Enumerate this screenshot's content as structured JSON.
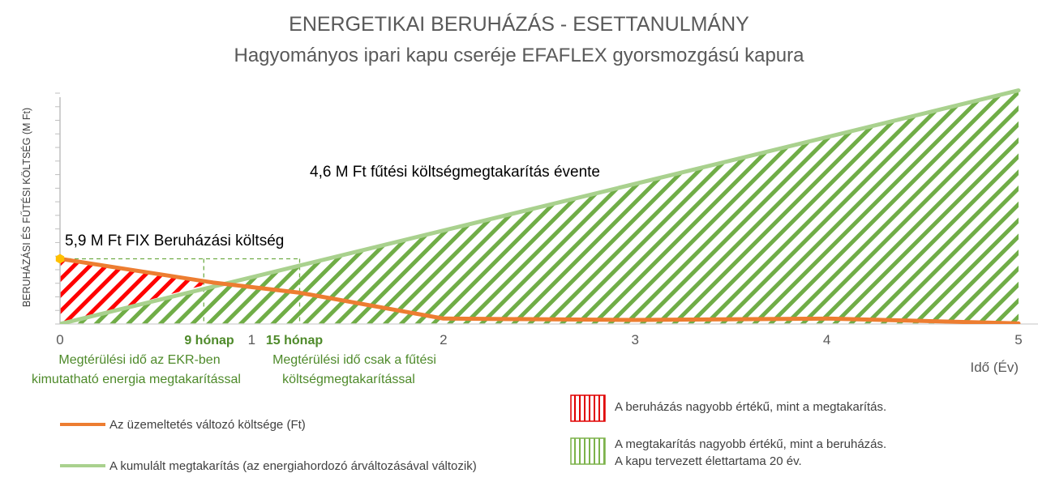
{
  "chart_data": {
    "type": "line",
    "title": "ENERGETIKAI BERUHÁZÁS - ESETTANULMÁNY",
    "subtitle": "Hagyományos ipari kapu cseréje EFAFLEX gyorsmozgású kapura",
    "xlabel": "Idő (Év)",
    "ylabel": "BERUHÁZÁSI ÉS FŰTÉSI KÖLTSÉG (M Ft)",
    "xlim": [
      0,
      5
    ],
    "ylim": [
      0,
      17
    ],
    "x_ticks": [
      "0",
      "1",
      "2",
      "3",
      "4",
      "5"
    ],
    "grid": false,
    "series": [
      {
        "name": "Az üzemeltetés változó költsége (Ft)",
        "color": "#ed7d31",
        "x": [
          0,
          0.8,
          1.25,
          2,
          3,
          4,
          5
        ],
        "y": [
          4.8,
          3.05,
          2.3,
          0.4,
          0.3,
          0.4,
          0.05
        ]
      },
      {
        "name": "A kumulált megtakarítás (az energiahordozó árváltozásával változik)",
        "color": "#a9d18e",
        "x": [
          0,
          5
        ],
        "y": [
          0,
          17.2
        ]
      }
    ],
    "regions": [
      {
        "label": "A beruházás nagyobb értékű, mint a megtakarítás.",
        "color": "#ff0000",
        "x_range": [
          0,
          0.8
        ]
      },
      {
        "label": "A megtakarítás nagyobb értékű, mint a beruházás.",
        "label2": "A kapu tervezett élettartama 20 év.",
        "color": "#70ad47",
        "x_range": [
          0.8,
          5
        ]
      }
    ],
    "annotations": [
      {
        "text": "5,9 M Ft FIX Beruházási költség",
        "x": 0,
        "y": 4.8
      },
      {
        "text": "4,6 M Ft fűtési költségmegtakarítás évente",
        "x": 2.3,
        "y": 11.5
      }
    ],
    "markers": [
      {
        "label": "9 hónap",
        "note": [
          "Megtérülési idő az EKR-ben",
          "kimutatható energia megtakarítással"
        ],
        "x": 0.75,
        "y": 4.8
      },
      {
        "label": "15 hónap",
        "note": [
          "Megtérülési idő csak a fűtési",
          "költségmegtakarítással"
        ],
        "x": 1.25,
        "y": 4.8
      }
    ],
    "legend_position": "bottom"
  }
}
